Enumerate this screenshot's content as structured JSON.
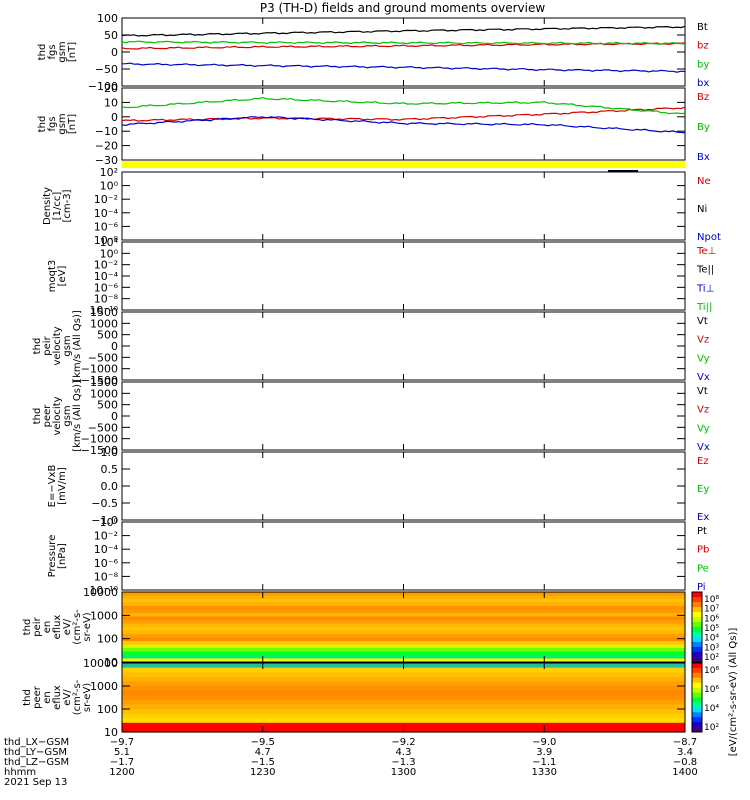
{
  "title": "P3 (TH-D) fields and ground moments overview",
  "panels": [
    {
      "id": "fgs1",
      "ylabel": [
        "thd",
        "fgs",
        "gsm",
        "[nT]"
      ],
      "ticks": [
        "100",
        "50",
        "0",
        "−50",
        "−100"
      ],
      "legend": [
        {
          "t": "Bt",
          "c": "#000000"
        },
        {
          "t": "bz",
          "c": "#d40000"
        },
        {
          "t": "by",
          "c": "#00c000"
        },
        {
          "t": "bx",
          "c": "#0000c8"
        }
      ]
    },
    {
      "id": "fgs2",
      "ylabel": [
        "thd",
        "fgs",
        "gsm",
        "[nT]"
      ],
      "ticks": [
        "20",
        "10",
        "0",
        "−10",
        "−20",
        "−30"
      ],
      "legend": [
        {
          "t": "Bz",
          "c": "#d40000"
        },
        {
          "t": "By",
          "c": "#00c000"
        },
        {
          "t": "Bx",
          "c": "#0000c8"
        }
      ]
    },
    {
      "id": "density",
      "ylabel": [
        "Density",
        "[1/cc]",
        "[cm-3]"
      ],
      "ticks": [
        "10²",
        "10⁰",
        "10⁻²",
        "10⁻⁴",
        "10⁻⁶",
        "10⁻⁸"
      ],
      "legend": [
        {
          "t": "Ne",
          "c": "#d40000"
        },
        {
          "t": "Ni",
          "c": "#000000"
        },
        {
          "t": "Npot",
          "c": "#0000c8"
        }
      ]
    },
    {
      "id": "temp",
      "ylabel": [
        "moqt3",
        "[eV]"
      ],
      "ticks": [
        "10⁴",
        "10⁰",
        "10⁻²",
        "10⁻⁴",
        "10⁻⁶",
        "10⁻⁸",
        "10⁻¹⁰"
      ],
      "legend": [
        {
          "t": "Te⊥",
          "c": "#d40000"
        },
        {
          "t": "Te||",
          "c": "#000000"
        },
        {
          "t": "Ti⊥",
          "c": "#0000c8"
        },
        {
          "t": "Ti||",
          "c": "#00c000"
        }
      ]
    },
    {
      "id": "peir_vel",
      "ylabel": [
        "thd",
        "peir",
        "velocity",
        "gsm",
        "[km/s (All Qs)]"
      ],
      "ticks": [
        "1500",
        "1000",
        "500",
        "0",
        "−500",
        "−1000",
        "−1500"
      ],
      "legend": [
        {
          "t": "Vt",
          "c": "#000000"
        },
        {
          "t": "Vz",
          "c": "#d40000"
        },
        {
          "t": "Vy",
          "c": "#00c000"
        },
        {
          "t": "Vx",
          "c": "#0000c8"
        }
      ]
    },
    {
      "id": "peer_vel",
      "ylabel": [
        "thd",
        "peer",
        "velocity",
        "gsm",
        "[km/s (All Qs)]"
      ],
      "ticks": [
        "1500",
        "1000",
        "500",
        "0",
        "−500",
        "−1000",
        "−1500"
      ],
      "legend": [
        {
          "t": "Vt",
          "c": "#000000"
        },
        {
          "t": "Vz",
          "c": "#d40000"
        },
        {
          "t": "Vy",
          "c": "#00c000"
        },
        {
          "t": "Vx",
          "c": "#0000c8"
        }
      ]
    },
    {
      "id": "efield",
      "ylabel": [
        "E=−VxB",
        "[mV/m]"
      ],
      "ticks": [
        "1.0",
        "0.5",
        "0.0",
        "−0.5",
        "−1.0"
      ],
      "legend": [
        {
          "t": "Ez",
          "c": "#d40000"
        },
        {
          "t": "Ey",
          "c": "#00c000"
        },
        {
          "t": "Ex",
          "c": "#0000c8"
        }
      ]
    },
    {
      "id": "pressure",
      "ylabel": [
        "Pressure",
        "[nPa]"
      ],
      "ticks": [
        "10⁰",
        "10⁻²",
        "10⁻⁴",
        "10⁻⁶",
        "10⁻⁸",
        "10⁻¹⁰"
      ],
      "legend": [
        {
          "t": "Pt",
          "c": "#000000"
        },
        {
          "t": "Pb",
          "c": "#d40000"
        },
        {
          "t": "Pe",
          "c": "#00c000"
        },
        {
          "t": "Pi",
          "c": "#0000c8"
        }
      ]
    },
    {
      "id": "peir_en",
      "ylabel": [
        "thd",
        "peir",
        "en",
        "eflux",
        "eV/",
        "(cm²-s-",
        "sr-eV)"
      ],
      "ticks": [
        "10000",
        "1000",
        "100",
        "10"
      ],
      "legend": []
    },
    {
      "id": "peer_en",
      "ylabel": [
        "thd",
        "peer",
        "en",
        "eflux",
        "eV/",
        "(cm²-s-",
        "sr-eV)"
      ],
      "ticks": [
        "10000",
        "1000",
        "100",
        "10"
      ],
      "legend": []
    }
  ],
  "colorbar": {
    "label": "[eV/(cm²-s-sr-eV) (All Qs)]",
    "ticks": [
      "10⁸",
      "10⁷",
      "10⁶",
      "10⁵",
      "10⁴",
      "10³",
      "10²"
    ],
    "ticks2": [
      "10⁸",
      "10⁶",
      "10⁴",
      "10²"
    ]
  },
  "xaxis": {
    "rowlabels": [
      "thd_LX−GSM",
      "thd_LY−GSM",
      "thd_LZ−GSM",
      "hhmm",
      "2021 Sep 13"
    ],
    "cols": [
      [
        "−9.7",
        "5.1",
        "−1.7",
        "1200"
      ],
      [
        "−9.5",
        "4.7",
        "−1.5",
        "1230"
      ],
      [
        "−9.2",
        "4.3",
        "−1.3",
        "1300"
      ],
      [
        "−9.0",
        "3.9",
        "−1.1",
        "1330"
      ],
      [
        "−8.7",
        "3.4",
        "−0.8",
        "1400"
      ]
    ]
  },
  "chart_data": [
    {
      "type": "line",
      "panel": "fgs1",
      "ylim": [
        -100,
        100
      ],
      "x": [
        "1200",
        "1230",
        "1300",
        "1330",
        "1400"
      ],
      "series": [
        {
          "name": "Bt",
          "values": [
            48,
            55,
            62,
            68,
            74
          ]
        },
        {
          "name": "bz",
          "values": [
            10,
            15,
            18,
            22,
            25
          ]
        },
        {
          "name": "by",
          "values": [
            30,
            28,
            27,
            26,
            25
          ]
        },
        {
          "name": "bx",
          "values": [
            -35,
            -40,
            -45,
            -52,
            -57
          ]
        }
      ]
    },
    {
      "type": "line",
      "panel": "fgs2",
      "ylim": [
        -35,
        20
      ],
      "x": [
        "1200",
        "1230",
        "1300",
        "1330",
        "1400"
      ],
      "series": [
        {
          "name": "Bz",
          "values": [
            -5,
            -3,
            -4,
            0,
            5
          ]
        },
        {
          "name": "By",
          "values": [
            5,
            12,
            8,
            9,
            0
          ]
        },
        {
          "name": "Bx",
          "values": [
            -8,
            -2,
            -7,
            -8,
            -14
          ]
        }
      ]
    },
    {
      "type": "heatmap",
      "panel": "peir_en",
      "ylim": [
        10,
        10000
      ]
    },
    {
      "type": "heatmap",
      "panel": "peer_en",
      "ylim": [
        10,
        10000
      ]
    }
  ]
}
